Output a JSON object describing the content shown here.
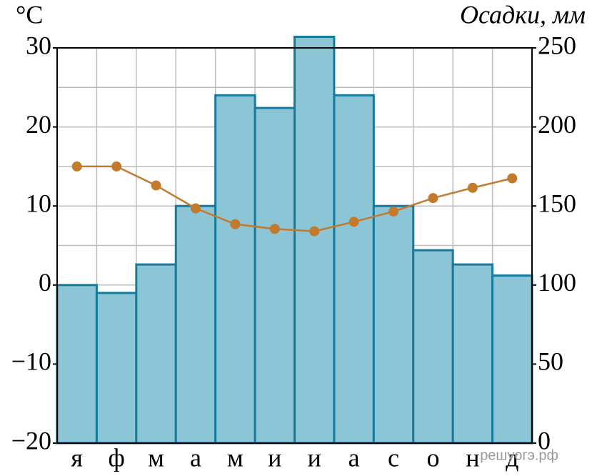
{
  "chart_data": {
    "type": "bar_line",
    "y_label": "°C",
    "y2_label": "Осадки, мм",
    "watermark": "решуогэ.рф",
    "categories": [
      "я",
      "ф",
      "м",
      "а",
      "м",
      "и",
      "и",
      "а",
      "с",
      "о",
      "н",
      "д"
    ],
    "series": [
      {
        "type": "bar",
        "axis": "y2",
        "color": "#8cc5d6",
        "edge": "#157a9c",
        "values": [
          100,
          95,
          113,
          150,
          220,
          212,
          257,
          220,
          150,
          122,
          113,
          106
        ]
      },
      {
        "type": "line",
        "color": "#c47a2c",
        "values": [
          15,
          15,
          12.6,
          9.7,
          7.7,
          7.1,
          6.8,
          8.0,
          9.3,
          11.0,
          12.3,
          13.5
        ]
      }
    ],
    "ylim": [
      -20,
      30
    ],
    "yticks": [
      {
        "value": -20,
        "label": "−20"
      },
      {
        "value": -10,
        "label": "−10"
      },
      0,
      10,
      20,
      30
    ],
    "y2lim": [
      0,
      250
    ],
    "y2ticks": [
      0,
      50,
      100,
      150,
      200,
      250
    ],
    "grid": true
  }
}
